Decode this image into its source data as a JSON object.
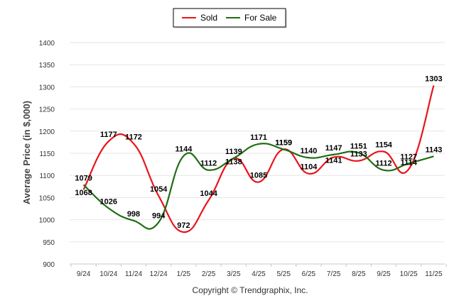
{
  "chart_data": {
    "type": "line",
    "title": "",
    "xlabel": "",
    "ylabel": "Average Price (in $,000)",
    "ylim": [
      900,
      1400
    ],
    "yticks": [
      900,
      950,
      1000,
      1050,
      1100,
      1150,
      1200,
      1250,
      1300,
      1350,
      1400
    ],
    "categories": [
      "9/24",
      "10/24",
      "11/24",
      "12/24",
      "1/25",
      "2/25",
      "3/25",
      "4/25",
      "5/25",
      "6/25",
      "7/25",
      "8/25",
      "9/25",
      "10/25",
      "11/25"
    ],
    "series": [
      {
        "name": "Sold",
        "color": "#e8141b",
        "values": [
          1068,
          1177,
          1172,
          1054,
          972,
          1044,
          1138,
          1085,
          1159,
          1104,
          1141,
          1133,
          1154,
          1114,
          1303
        ]
      },
      {
        "name": "For Sale",
        "color": "#1f6e12",
        "values": [
          1079,
          1026,
          998,
          994,
          1144,
          1112,
          1139,
          1171,
          1159,
          1140,
          1147,
          1151,
          1112,
          1127,
          1143
        ]
      }
    ],
    "legend_position": "top-center",
    "grid": true
  },
  "footer": {
    "copyright": "Copyright © Trendgraphix, Inc."
  }
}
